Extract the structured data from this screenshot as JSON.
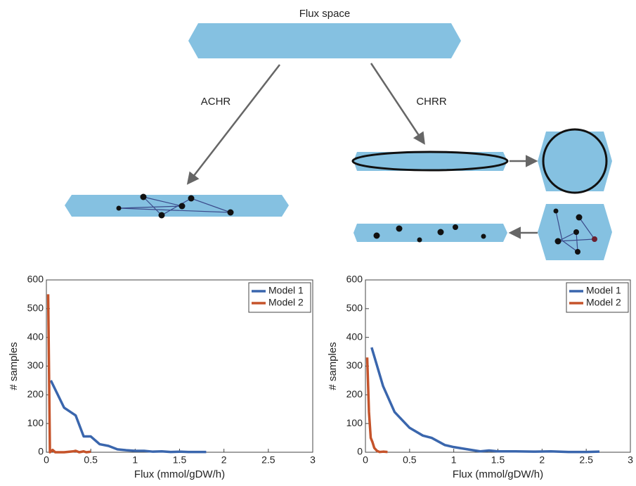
{
  "diagram": {
    "top_label": "Flux space",
    "left_method": "ACHR",
    "right_method": "CHRR"
  },
  "chart_data": [
    {
      "type": "line",
      "xlabel": "Flux (mmol/gDW/h)",
      "ylabel": "# samples",
      "xlim": [
        0,
        3
      ],
      "ylim": [
        0,
        600
      ],
      "xticks": [
        0,
        0.5,
        1,
        1.5,
        2,
        2.5,
        3
      ],
      "yticks": [
        0,
        100,
        200,
        300,
        400,
        500,
        600
      ],
      "legend": "northeast",
      "series": [
        {
          "name": "Model 1",
          "color": "#3a66ad",
          "x": [
            0.05,
            0.2,
            0.33,
            0.42,
            0.5,
            0.6,
            0.7,
            0.8,
            0.9,
            1.0,
            1.1,
            1.2,
            1.3,
            1.4,
            1.5,
            1.6,
            1.7,
            1.8
          ],
          "values": [
            250,
            155,
            128,
            55,
            55,
            28,
            22,
            10,
            7,
            5,
            5,
            2,
            3,
            1,
            2,
            1,
            1,
            1
          ]
        },
        {
          "name": "Model 2",
          "color": "#c5532a",
          "x": [
            0.02,
            0.04,
            0.07,
            0.1,
            0.2,
            0.3,
            0.33,
            0.37,
            0.42,
            0.45,
            0.5
          ],
          "values": [
            550,
            0,
            8,
            0,
            0,
            3,
            5,
            0,
            3,
            0,
            2
          ]
        }
      ]
    },
    {
      "type": "line",
      "xlabel": "Flux (mmol/gDW/h)",
      "ylabel": "# samples",
      "xlim": [
        0,
        3
      ],
      "ylim": [
        0,
        600
      ],
      "xticks": [
        0,
        0.5,
        1,
        1.5,
        2,
        2.5,
        3
      ],
      "yticks": [
        0,
        100,
        200,
        300,
        400,
        500,
        600
      ],
      "legend": "northeast",
      "series": [
        {
          "name": "Model 1",
          "color": "#3a66ad",
          "x": [
            0.07,
            0.2,
            0.33,
            0.5,
            0.65,
            0.75,
            0.9,
            1.0,
            1.2,
            1.3,
            1.4,
            1.5,
            1.7,
            1.9,
            2.1,
            2.3,
            2.5,
            2.65
          ],
          "values": [
            365,
            230,
            140,
            85,
            58,
            50,
            25,
            18,
            8,
            3,
            6,
            3,
            3,
            2,
            3,
            1,
            1,
            2
          ]
        },
        {
          "name": "Model 2",
          "color": "#c5532a",
          "x": [
            0.02,
            0.04,
            0.06,
            0.08,
            0.1,
            0.13,
            0.16,
            0.2,
            0.25
          ],
          "values": [
            330,
            140,
            50,
            35,
            15,
            5,
            1,
            2,
            1
          ]
        }
      ]
    }
  ]
}
